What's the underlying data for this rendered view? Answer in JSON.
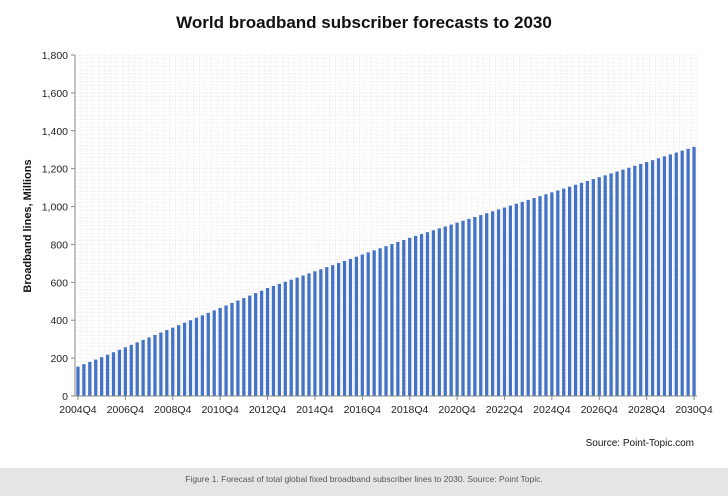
{
  "chart_data": {
    "type": "bar",
    "title": "World broadband subscriber forecasts to 2030",
    "ylabel": "Broadband lines, Millions",
    "xlabel": "",
    "ylim": [
      0,
      1800
    ],
    "yticks": [
      0,
      200,
      400,
      600,
      800,
      1000,
      1200,
      1400,
      1600,
      1800
    ],
    "ytick_labels": [
      "0",
      "200",
      "400",
      "600",
      "800",
      "1,000",
      "1,200",
      "1,400",
      "1,600",
      "1,800"
    ],
    "xtick_labels": [
      "2004Q4",
      "2006Q4",
      "2008Q4",
      "2010Q4",
      "2012Q4",
      "2014Q4",
      "2016Q4",
      "2018Q4",
      "2020Q4",
      "2022Q4",
      "2024Q4",
      "2026Q4",
      "2028Q4",
      "2030Q4"
    ],
    "grid": true,
    "bar_color": "#4472c4",
    "categories": [
      "2004Q4",
      "2005Q1",
      "2005Q2",
      "2005Q3",
      "2005Q4",
      "2006Q1",
      "2006Q2",
      "2006Q3",
      "2006Q4",
      "2007Q1",
      "2007Q2",
      "2007Q3",
      "2007Q4",
      "2008Q1",
      "2008Q2",
      "2008Q3",
      "2008Q4",
      "2009Q1",
      "2009Q2",
      "2009Q3",
      "2009Q4",
      "2010Q1",
      "2010Q2",
      "2010Q3",
      "2010Q4",
      "2011Q1",
      "2011Q2",
      "2011Q3",
      "2011Q4",
      "2012Q1",
      "2012Q2",
      "2012Q3",
      "2012Q4",
      "2013Q1",
      "2013Q2",
      "2013Q3",
      "2013Q4",
      "2014Q1",
      "2014Q2",
      "2014Q3",
      "2014Q4",
      "2015Q1",
      "2015Q2",
      "2015Q3",
      "2015Q4",
      "2016Q1",
      "2016Q2",
      "2016Q3",
      "2016Q4",
      "2017Q1",
      "2017Q2",
      "2017Q3",
      "2017Q4",
      "2018Q1",
      "2018Q2",
      "2018Q3",
      "2018Q4",
      "2019Q1",
      "2019Q2",
      "2019Q3",
      "2019Q4",
      "2020Q1",
      "2020Q2",
      "2020Q3",
      "2020Q4",
      "2021Q1",
      "2021Q2",
      "2021Q3",
      "2021Q4",
      "2022Q1",
      "2022Q2",
      "2022Q3",
      "2022Q4",
      "2023Q1",
      "2023Q2",
      "2023Q3",
      "2023Q4",
      "2024Q1",
      "2024Q2",
      "2024Q3",
      "2024Q4",
      "2025Q1",
      "2025Q2",
      "2025Q3",
      "2025Q4",
      "2026Q1",
      "2026Q2",
      "2026Q3",
      "2026Q4",
      "2027Q1",
      "2027Q2",
      "2027Q3",
      "2027Q4",
      "2028Q1",
      "2028Q2",
      "2028Q3",
      "2028Q4",
      "2029Q1",
      "2029Q2",
      "2029Q3",
      "2029Q4",
      "2030Q1",
      "2030Q2",
      "2030Q3",
      "2030Q4"
    ],
    "values": [
      155,
      168,
      180,
      192,
      205,
      218,
      231,
      244,
      257,
      270,
      283,
      296,
      309,
      322,
      335,
      348,
      361,
      374,
      387,
      400,
      413,
      426,
      439,
      452,
      465,
      478,
      491,
      504,
      517,
      530,
      543,
      556,
      570,
      581,
      592,
      603,
      614,
      625,
      636,
      647,
      658,
      669,
      680,
      691,
      702,
      713,
      724,
      735,
      747,
      758,
      769,
      780,
      791,
      802,
      813,
      824,
      835,
      845,
      855,
      865,
      875,
      885,
      895,
      905,
      915,
      925,
      935,
      945,
      955,
      965,
      975,
      985,
      995,
      1005,
      1015,
      1025,
      1035,
      1045,
      1055,
      1065,
      1075,
      1085,
      1095,
      1105,
      1115,
      1125,
      1135,
      1145,
      1155,
      1165,
      1175,
      1185,
      1195,
      1205,
      1215,
      1225,
      1235,
      1245,
      1255,
      1265,
      1275,
      1285,
      1295,
      1305,
      1315
    ]
  },
  "source": "Source: Point-Topic.com",
  "caption": "Figure 1. Forecast of total global fixed broadband subscriber lines to 2030. Source: Point Topic."
}
